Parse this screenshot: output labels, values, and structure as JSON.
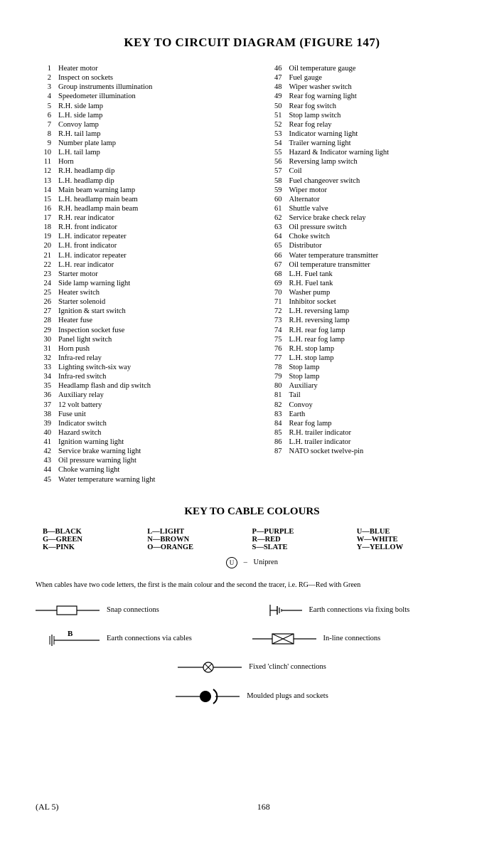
{
  "title": "KEY TO CIRCUIT DIAGRAM (FIGURE 147)",
  "list_left": [
    {
      "n": "1",
      "t": "Heater motor"
    },
    {
      "n": "2",
      "t": "Inspect on sockets"
    },
    {
      "n": "3",
      "t": "Group instruments illumination"
    },
    {
      "n": "4",
      "t": "Speedometer illumination"
    },
    {
      "n": "5",
      "t": "R.H. side lamp"
    },
    {
      "n": "6",
      "t": "L.H. side lamp"
    },
    {
      "n": "7",
      "t": "Convoy lamp"
    },
    {
      "n": "8",
      "t": "R.H. tail lamp"
    },
    {
      "n": "9",
      "t": "Number plate lamp"
    },
    {
      "n": "10",
      "t": "L.H. tail lamp"
    },
    {
      "n": "11",
      "t": "Horn"
    },
    {
      "n": "12",
      "t": "R.H. headlamp dip"
    },
    {
      "n": "13",
      "t": "L.H. headlamp dip"
    },
    {
      "n": "14",
      "t": "Main beam warning lamp"
    },
    {
      "n": "15",
      "t": "L.H. headlamp main beam"
    },
    {
      "n": "16",
      "t": "R.H. headlamp main beam"
    },
    {
      "n": "17",
      "t": "R.H. rear indicator"
    },
    {
      "n": "18",
      "t": "R.H. front indicator"
    },
    {
      "n": "19",
      "t": "L.H. indicator repeater"
    },
    {
      "n": "20",
      "t": "L.H. front indicator"
    },
    {
      "n": "21",
      "t": "L.H. indicator repeater"
    },
    {
      "n": "22",
      "t": "L.H. rear indicator"
    },
    {
      "n": "23",
      "t": "Starter motor"
    },
    {
      "n": "24",
      "t": "Side lamp warning light"
    },
    {
      "n": "25",
      "t": "Heater switch"
    },
    {
      "n": "26",
      "t": "Starter solenoid"
    },
    {
      "n": "27",
      "t": "Ignition & start switch"
    },
    {
      "n": "28",
      "t": "Heater fuse"
    },
    {
      "n": "29",
      "t": "Inspection socket fuse"
    },
    {
      "n": "30",
      "t": "Panel light switch"
    },
    {
      "n": "31",
      "t": "Horn push"
    },
    {
      "n": "32",
      "t": "Infra-red relay"
    },
    {
      "n": "33",
      "t": "Lighting switch-six way"
    },
    {
      "n": "34",
      "t": "Infra-red switch"
    },
    {
      "n": "35",
      "t": "Headlamp flash and dip switch"
    },
    {
      "n": "36",
      "t": "Auxiliary relay"
    },
    {
      "n": "37",
      "t": "12 volt battery"
    },
    {
      "n": "38",
      "t": "Fuse unit"
    },
    {
      "n": "39",
      "t": "Indicator switch"
    },
    {
      "n": "40",
      "t": "Hazard switch"
    },
    {
      "n": "41",
      "t": "Ignition warning light"
    },
    {
      "n": "42",
      "t": "Service brake warning light"
    },
    {
      "n": "43",
      "t": "Oil pressure warning light"
    },
    {
      "n": "44",
      "t": "Choke warning light"
    },
    {
      "n": "45",
      "t": "Water temperature warning light"
    }
  ],
  "list_right": [
    {
      "n": "46",
      "t": "Oil temperature gauge"
    },
    {
      "n": "47",
      "t": "Fuel gauge"
    },
    {
      "n": "48",
      "t": "Wiper washer switch"
    },
    {
      "n": "49",
      "t": "Rear fog warning light"
    },
    {
      "n": "50",
      "t": "Rear fog switch"
    },
    {
      "n": "51",
      "t": "Stop lamp switch"
    },
    {
      "n": "52",
      "t": "Rear fog relay"
    },
    {
      "n": "53",
      "t": "Indicator warning light"
    },
    {
      "n": "54",
      "t": "Trailer warning light"
    },
    {
      "n": "55",
      "t": "Hazard & Indicator warning light"
    },
    {
      "n": "56",
      "t": "Reversing lamp switch"
    },
    {
      "n": "57",
      "t": "Coil"
    },
    {
      "n": "58",
      "t": "Fuel changeover switch"
    },
    {
      "n": "59",
      "t": "Wiper motor"
    },
    {
      "n": "60",
      "t": "Alternator"
    },
    {
      "n": "61",
      "t": "Shuttle valve"
    },
    {
      "n": "62",
      "t": "Service brake check relay"
    },
    {
      "n": "63",
      "t": "Oil pressure switch"
    },
    {
      "n": "64",
      "t": "Choke switch"
    },
    {
      "n": "65",
      "t": "Distributor"
    },
    {
      "n": "66",
      "t": "Water temperature transmitter"
    },
    {
      "n": "67",
      "t": "Oil temperature transmitter"
    },
    {
      "n": "68",
      "t": "L.H. Fuel tank"
    },
    {
      "n": "69",
      "t": "R.H. Fuel tank"
    },
    {
      "n": "70",
      "t": "Washer pump"
    },
    {
      "n": "71",
      "t": "Inhibitor socket"
    },
    {
      "n": "72",
      "t": "L.H. reversing lamp"
    },
    {
      "n": "73",
      "t": "R.H. reversing lamp"
    },
    {
      "n": "74",
      "t": "R.H. rear fog lamp"
    },
    {
      "n": "75",
      "t": "L.H. rear fog lamp"
    },
    {
      "n": "76",
      "t": "R.H. stop lamp"
    },
    {
      "n": "77",
      "t": "L.H. stop lamp"
    },
    {
      "n": "78",
      "t": "Stop lamp"
    },
    {
      "n": "79",
      "t": "Stop lamp"
    },
    {
      "n": "80",
      "t": "Auxiliary"
    },
    {
      "n": "81",
      "t": "Tail"
    },
    {
      "n": "82",
      "t": "Convoy"
    },
    {
      "n": "83",
      "t": "Earth"
    },
    {
      "n": "84",
      "t": "Rear fog lamp"
    },
    {
      "n": "85",
      "t": "R.H. trailer indicator"
    },
    {
      "n": "86",
      "t": "L.H. trailer indicator"
    },
    {
      "n": "87",
      "t": "NATO socket twelve-pin"
    }
  ],
  "subtitle": "KEY TO CABLE COLOURS",
  "colours": {
    "c1": [
      "B—BLACK",
      "G—GREEN",
      "K—PINK"
    ],
    "c2": [
      "L—LIGHT",
      "N—BROWN",
      "O—ORANGE"
    ],
    "c3": [
      "P—PURPLE",
      "R—RED",
      "S—SLATE"
    ],
    "c4": [
      "U—BLUE",
      "W—WHITE",
      "Y—YELLOW"
    ]
  },
  "unipren_symbol": "U",
  "unipren_dash": "–",
  "unipren_label": "Unipren",
  "note": "When cables have two code letters, the first is the main colour and the second the tracer, i.e. RG—Red with Green",
  "symbols": {
    "snap": "Snap connections",
    "earth_bolts": "Earth connections via fixing bolts",
    "earth_cables_letter": "B",
    "earth_cables": "Earth connections via cables",
    "inline": "In-line connections",
    "clinch": "Fixed 'clinch' connections",
    "moulded": "Moulded plugs and sockets"
  },
  "footer_left": "(AL 5)",
  "footer_page": "168"
}
